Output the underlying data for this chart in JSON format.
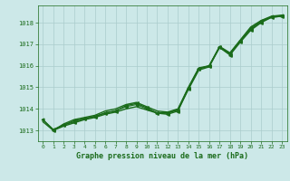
{
  "background_color": "#cce8e8",
  "grid_color": "#aacccc",
  "line_color_main": "#1a6b1a",
  "title": "Graphe pression niveau de la mer (hPa)",
  "xlim": [
    -0.5,
    23.5
  ],
  "ylim": [
    1012.5,
    1018.8
  ],
  "yticks": [
    1013,
    1014,
    1015,
    1016,
    1017,
    1018
  ],
  "xticks": [
    0,
    1,
    2,
    3,
    4,
    5,
    6,
    7,
    8,
    9,
    10,
    11,
    12,
    13,
    14,
    15,
    16,
    17,
    18,
    19,
    20,
    21,
    22,
    23
  ],
  "series": [
    {
      "x": [
        0,
        1,
        2,
        3,
        4,
        5,
        6,
        7,
        8,
        9,
        10,
        11,
        12,
        13,
        14,
        15,
        16,
        17,
        18,
        19,
        20,
        21,
        22,
        23
      ],
      "y": [
        1013.5,
        1013.0,
        1013.3,
        1013.5,
        1013.6,
        1013.7,
        1013.9,
        1014.0,
        1014.2,
        1014.3,
        1014.1,
        1013.9,
        1013.85,
        1014.0,
        1015.0,
        1015.9,
        1016.0,
        1016.9,
        1016.6,
        1017.2,
        1017.8,
        1018.1,
        1018.3,
        1018.35
      ],
      "marker": false,
      "linewidth": 1.0
    },
    {
      "x": [
        0,
        1,
        2,
        3,
        4,
        5,
        6,
        7,
        8,
        9,
        10,
        11,
        12,
        13,
        14,
        15,
        16,
        17,
        18,
        19,
        20,
        21,
        22,
        23
      ],
      "y": [
        1013.4,
        1013.0,
        1013.2,
        1013.35,
        1013.5,
        1013.6,
        1013.75,
        1013.85,
        1014.0,
        1014.1,
        1013.95,
        1013.8,
        1013.8,
        1013.95,
        1014.9,
        1015.8,
        1015.95,
        1016.85,
        1016.55,
        1017.15,
        1017.7,
        1018.05,
        1018.25,
        1018.3
      ],
      "marker": false,
      "linewidth": 1.0
    },
    {
      "x": [
        1,
        2,
        3,
        4,
        5,
        6,
        7,
        8,
        9,
        10,
        11,
        12,
        13,
        14,
        15,
        16,
        17,
        18,
        19,
        20,
        21,
        22,
        23
      ],
      "y": [
        1013.0,
        1013.25,
        1013.4,
        1013.55,
        1013.65,
        1013.8,
        1013.9,
        1014.15,
        1014.25,
        1014.05,
        1013.8,
        1013.75,
        1013.9,
        1014.95,
        1015.85,
        1016.0,
        1016.85,
        1016.5,
        1017.1,
        1017.65,
        1018.0,
        1018.25,
        1018.3
      ],
      "marker": true,
      "markersize": 2.5,
      "linewidth": 1.0
    },
    {
      "x": [
        0,
        1,
        2,
        3,
        4,
        5,
        6,
        7,
        8,
        9,
        10,
        11,
        12,
        13,
        14,
        15,
        16,
        17,
        18,
        19,
        20,
        21,
        22,
        23
      ],
      "y": [
        1013.5,
        1013.05,
        1013.25,
        1013.45,
        1013.55,
        1013.65,
        1013.82,
        1013.92,
        1014.1,
        1014.2,
        1014.0,
        1013.82,
        1013.82,
        1013.98,
        1014.98,
        1015.88,
        1015.98,
        1016.88,
        1016.58,
        1017.18,
        1017.75,
        1018.08,
        1018.28,
        1018.33
      ],
      "marker": true,
      "markersize": 2.0,
      "linewidth": 0.8
    }
  ]
}
